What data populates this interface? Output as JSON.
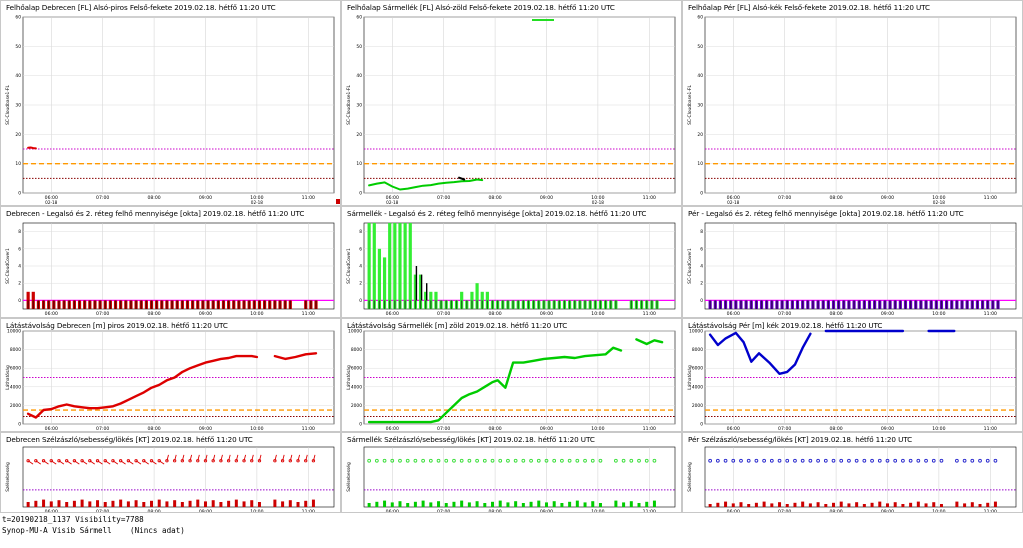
{
  "chart_data": [
    {
      "type": "line",
      "title": "Felhőalap Debrecen [FL] Alsó-piros Felső-fekete 2019.02.18. hétfő 11:20 UTC",
      "ylabel": "SC-Cloudbase1-FL",
      "ylim": [
        0,
        60
      ],
      "yticks": [
        "0",
        "10",
        "20",
        "30",
        "40",
        "50",
        "60"
      ],
      "xticks": [
        "06:00",
        "07:00",
        "08:00",
        "09:00",
        "10:00",
        "11:00"
      ],
      "sublabel": "02-18",
      "thresholds": [
        {
          "value": 15,
          "color": "#cc00cc"
        },
        {
          "value": 10,
          "color": "#ff9900"
        },
        {
          "value": 5,
          "color": "#880000"
        }
      ],
      "series": [
        {
          "color": "#dd0000",
          "points": [
            [
              5.55,
              15.4
            ],
            [
              5.6,
              15.5
            ],
            [
              5.65,
              15.3
            ],
            [
              5.7,
              15.2
            ]
          ]
        }
      ]
    },
    {
      "type": "line",
      "title": "Felhőalap Sármellék [FL] Alsó-zöld Felső-fekete 2019.02.18. hétfő 11:20 UTC",
      "ylabel": "SC-Cloudbase1-FL",
      "ylim": [
        0,
        60
      ],
      "yticks": [
        "0",
        "10",
        "20",
        "30",
        "40",
        "50",
        "60"
      ],
      "xticks": [
        "06:00",
        "07:00",
        "08:00",
        "09:00",
        "10:00",
        "11:00"
      ],
      "sublabel": "02-18",
      "thresholds": [
        {
          "value": 15,
          "color": "#cc00cc"
        },
        {
          "value": 10,
          "color": "#ff9900"
        },
        {
          "value": 5,
          "color": "#880000"
        }
      ],
      "series": [
        {
          "color": "#00cc00",
          "points": [
            [
              5.55,
              2.6
            ],
            [
              5.7,
              3.2
            ],
            [
              5.85,
              3.6
            ],
            [
              6.0,
              2.2
            ],
            [
              6.15,
              1.2
            ],
            [
              6.3,
              1.5
            ],
            [
              6.45,
              2
            ],
            [
              6.6,
              2.5
            ],
            [
              6.75,
              2.7
            ],
            [
              6.9,
              3.2
            ],
            [
              7.05,
              3.5
            ],
            [
              7.2,
              3.7
            ],
            [
              7.35,
              4
            ],
            [
              7.5,
              4.1
            ],
            [
              7.65,
              4.6
            ],
            [
              7.75,
              4.4
            ]
          ]
        },
        {
          "color": "#000000",
          "points": [
            [
              7.3,
              5.2
            ],
            [
              7.4,
              4.6
            ]
          ]
        }
      ],
      "legend_mark": true
    },
    {
      "type": "line",
      "title": "Felhőalap Pér [FL] Alsó-kék Felső-fekete 2019.02.18. hétfő 11:20 UTC",
      "ylabel": "SC-Cloudbase1-FL",
      "ylim": [
        0,
        60
      ],
      "yticks": [
        "0",
        "10",
        "20",
        "30",
        "40",
        "50",
        "60"
      ],
      "xticks": [
        "06:00",
        "07:00",
        "08:00",
        "09:00",
        "10:00",
        "11:00"
      ],
      "sublabel": "02-18",
      "thresholds": [
        {
          "value": 15,
          "color": "#cc00cc"
        },
        {
          "value": 10,
          "color": "#ff9900"
        },
        {
          "value": 5,
          "color": "#880000"
        }
      ],
      "series": []
    },
    {
      "type": "bar",
      "title": "Debrecen - Legalsó és 2. réteg felhő mennyisége [okta] 2019.02.18. hétfő 11:20 UTC",
      "ylabel": "SC-CloudCover1",
      "ylim": [
        -1,
        9
      ],
      "yticks": [
        "0",
        "2",
        "4",
        "6",
        "8"
      ],
      "xticks": [
        "06:00",
        "07:00",
        "08:00",
        "09:00",
        "10:00",
        "11:00"
      ],
      "baseline_color": "#ff00ff",
      "bars": {
        "color": "#cc0000",
        "start": 5.55,
        "step": 0.1,
        "values": [
          1,
          1,
          0,
          0,
          0,
          0,
          0,
          0,
          0,
          0,
          0,
          0,
          0,
          0,
          0,
          0,
          0,
          0,
          0,
          0,
          0,
          0,
          0,
          0,
          0,
          0,
          0,
          0,
          0,
          0,
          0,
          0,
          0,
          0,
          0,
          0,
          0,
          0,
          0,
          0,
          0,
          0,
          0,
          0,
          0,
          0,
          0,
          0,
          0,
          0,
          0,
          0,
          0,
          0,
          0,
          0,
          0
        ],
        "gaps": [
          52,
          53
        ]
      },
      "bars2": {
        "color": "#000000",
        "start": 5.55,
        "step": 0.1,
        "values": []
      }
    },
    {
      "type": "bar",
      "title": "Sármellék - Legalsó és 2. réteg felhő mennyisége [okta] 2019.02.18. hétfő 11:20 UTC",
      "ylabel": "SC-CloudCover1",
      "ylim": [
        -1,
        9
      ],
      "yticks": [
        "0",
        "2",
        "4",
        "6",
        "8"
      ],
      "xticks": [
        "06:00",
        "07:00",
        "08:00",
        "09:00",
        "10:00",
        "11:00"
      ],
      "baseline_color": "#ff00ff",
      "bars": {
        "color": "#33ee33",
        "start": 5.55,
        "step": 0.1,
        "values": [
          9,
          9,
          6,
          5,
          9,
          9,
          9,
          9,
          9,
          3,
          3,
          1,
          1,
          1,
          0,
          0,
          0,
          0,
          1,
          0,
          1,
          2,
          1,
          1,
          0,
          0,
          0,
          0,
          0,
          0,
          0,
          0,
          0,
          0,
          0,
          0,
          0,
          0,
          0,
          0,
          0,
          0,
          0,
          0,
          0,
          0,
          0,
          0,
          0,
          0,
          0,
          0,
          0,
          0,
          0,
          0,
          0
        ],
        "gaps": [
          49,
          50
        ]
      },
      "bars2": {
        "color": "#000000",
        "start": 5.55,
        "step": 0.1,
        "values": [
          0,
          0,
          0,
          0,
          0,
          0,
          0,
          0,
          0,
          4,
          3,
          2,
          0,
          0,
          0,
          0,
          0,
          0,
          0,
          0,
          0,
          0,
          0,
          0,
          0,
          0,
          0,
          0,
          0,
          0,
          0,
          0,
          0,
          0,
          0,
          0,
          0,
          0,
          0,
          0,
          0,
          0,
          0,
          0,
          0,
          0,
          0,
          0,
          0,
          0,
          0,
          0,
          0,
          0,
          0,
          0,
          0
        ]
      }
    },
    {
      "type": "bar",
      "title": "Pér - Legalsó és 2. réteg felhő mennyisége [okta] 2019.02.18. hétfő 11:20 UTC",
      "ylabel": "SC-CloudCover1",
      "ylim": [
        -1,
        9
      ],
      "yticks": [
        "0",
        "2",
        "4",
        "6",
        "8"
      ],
      "xticks": [
        "06:00",
        "07:00",
        "08:00",
        "09:00",
        "10:00",
        "11:00"
      ],
      "baseline_color": "#ff00ff",
      "bars": {
        "color": "#6a00cc",
        "start": 5.55,
        "step": 0.1,
        "values": [
          0,
          0,
          0,
          0,
          0,
          0,
          0,
          0,
          0,
          0,
          0,
          0,
          0,
          0,
          0,
          0,
          0,
          0,
          0,
          0,
          0,
          0,
          0,
          0,
          0,
          0,
          0,
          0,
          0,
          0,
          0,
          0,
          0,
          0,
          0,
          0,
          0,
          0,
          0,
          0,
          0,
          0,
          0,
          0,
          0,
          0,
          0,
          0,
          0,
          0,
          0,
          0,
          0,
          0,
          0,
          0,
          0
        ],
        "gaps": []
      },
      "bars2": {
        "color": "#000000",
        "start": 5.55,
        "step": 0.1,
        "values": []
      }
    },
    {
      "type": "line",
      "title": "Látástávolság Debrecen [m] piros 2019.02.18. hétfő 11:20 UTC",
      "ylabel": "Láthatóság",
      "ylim": [
        0,
        10000
      ],
      "yticks": [
        "0",
        "2000",
        "4000",
        "6000",
        "8000",
        "10000"
      ],
      "xticks": [
        "06:00",
        "07:00",
        "08:00",
        "09:00",
        "10:00",
        "11:00"
      ],
      "thresholds": [
        {
          "value": 5000,
          "color": "#cc00cc"
        },
        {
          "value": 1500,
          "color": "#ff9900"
        },
        {
          "value": 800,
          "color": "#880000"
        }
      ],
      "series": [
        {
          "color": "#dd0000",
          "points": [
            [
              5.55,
              1100
            ],
            [
              5.7,
              700
            ],
            [
              5.85,
              1500
            ],
            [
              6.0,
              1600
            ],
            [
              6.15,
              1900
            ],
            [
              6.3,
              2100
            ],
            [
              6.45,
              1900
            ],
            [
              6.6,
              1800
            ],
            [
              6.75,
              1700
            ],
            [
              6.9,
              1700
            ],
            [
              7.05,
              1800
            ],
            [
              7.2,
              1900
            ],
            [
              7.35,
              2200
            ],
            [
              7.5,
              2600
            ],
            [
              7.65,
              3000
            ],
            [
              7.8,
              3400
            ],
            [
              7.95,
              3900
            ],
            [
              8.1,
              4200
            ],
            [
              8.25,
              4700
            ],
            [
              8.4,
              5000
            ],
            [
              8.55,
              5600
            ],
            [
              8.7,
              6000
            ],
            [
              8.85,
              6300
            ],
            [
              9.0,
              6600
            ],
            [
              9.15,
              6800
            ],
            [
              9.3,
              7000
            ],
            [
              9.45,
              7100
            ],
            [
              9.6,
              7300
            ],
            [
              9.75,
              7300
            ],
            [
              9.9,
              7300
            ],
            [
              10.0,
              7200
            ]
          ]
        },
        {
          "color": "#dd0000",
          "points": [
            [
              10.35,
              7300
            ],
            [
              10.55,
              7000
            ],
            [
              10.75,
              7200
            ],
            [
              10.95,
              7500
            ],
            [
              11.15,
              7600
            ]
          ]
        }
      ]
    },
    {
      "type": "line",
      "title": "Látástávolság Sármellék [m] zöld 2019.02.18. hétfő 11:20 UTC",
      "ylabel": "Láthatóság",
      "ylim": [
        0,
        10000
      ],
      "yticks": [
        "0",
        "2000",
        "4000",
        "6000",
        "8000",
        "10000"
      ],
      "xticks": [
        "06:00",
        "07:00",
        "08:00",
        "09:00",
        "10:00",
        "11:00"
      ],
      "thresholds": [
        {
          "value": 5000,
          "color": "#cc00cc"
        },
        {
          "value": 1500,
          "color": "#ff9900"
        },
        {
          "value": 800,
          "color": "#880000"
        }
      ],
      "series": [
        {
          "color": "#00cc00",
          "points": [
            [
              5.55,
              200
            ],
            [
              5.85,
              200
            ],
            [
              6.15,
              200
            ],
            [
              6.45,
              200
            ],
            [
              6.75,
              200
            ],
            [
              6.9,
              400
            ],
            [
              7.05,
              1200
            ],
            [
              7.2,
              2000
            ],
            [
              7.35,
              2800
            ],
            [
              7.5,
              3200
            ],
            [
              7.65,
              3500
            ],
            [
              7.8,
              4000
            ],
            [
              7.95,
              4500
            ],
            [
              8.05,
              4700
            ],
            [
              8.2,
              3900
            ],
            [
              8.35,
              6600
            ],
            [
              8.55,
              6600
            ],
            [
              8.75,
              6800
            ],
            [
              8.95,
              7000
            ],
            [
              9.15,
              7100
            ],
            [
              9.35,
              7200
            ],
            [
              9.55,
              7100
            ],
            [
              9.75,
              7300
            ],
            [
              9.95,
              7400
            ],
            [
              10.15,
              7500
            ],
            [
              10.3,
              8200
            ],
            [
              10.45,
              7900
            ]
          ]
        },
        {
          "color": "#00cc00",
          "points": [
            [
              10.75,
              9100
            ],
            [
              10.95,
              8600
            ],
            [
              11.1,
              9000
            ],
            [
              11.25,
              8800
            ]
          ]
        }
      ]
    },
    {
      "type": "line",
      "title": "Látástávolság Pér [m] kék 2019.02.18. hétfő 11:20 UTC",
      "ylabel": "Láthatóság",
      "ylim": [
        0,
        10000
      ],
      "yticks": [
        "0",
        "2000",
        "4000",
        "6000",
        "8000",
        "10000"
      ],
      "xticks": [
        "06:00",
        "07:00",
        "08:00",
        "09:00",
        "10:00",
        "11:00"
      ],
      "thresholds": [
        {
          "value": 5000,
          "color": "#cc00cc"
        },
        {
          "value": 1500,
          "color": "#ff9900"
        },
        {
          "value": 800,
          "color": "#880000"
        }
      ],
      "series": [
        {
          "color": "#0000cc",
          "points": [
            [
              5.55,
              9600
            ],
            [
              5.7,
              8500
            ],
            [
              5.85,
              9200
            ],
            [
              6.05,
              9800
            ],
            [
              6.2,
              8800
            ],
            [
              6.35,
              6700
            ],
            [
              6.5,
              7600
            ],
            [
              6.7,
              6600
            ],
            [
              6.9,
              5400
            ],
            [
              7.05,
              5600
            ],
            [
              7.2,
              6400
            ],
            [
              7.35,
              8200
            ],
            [
              7.5,
              9700
            ]
          ]
        },
        {
          "color": "#0000cc",
          "points": [
            [
              7.8,
              10000
            ],
            [
              9.3,
              10000
            ]
          ]
        },
        {
          "color": "#0000cc",
          "points": [
            [
              9.8,
              10000
            ],
            [
              10.3,
              10000
            ]
          ]
        }
      ]
    },
    {
      "type": "scatter",
      "title": "Debrecen Szélzászló/sebesség/lökés [KT] 2019.02.18. hétfő 11:20 UTC",
      "ylabel": "Szélsebesség",
      "ylim": [
        0,
        35
      ],
      "xticks": [
        "06:00",
        "07:00",
        "08:00",
        "09:00",
        "10:00",
        "11:00"
      ],
      "threshold": {
        "value": 10,
        "color": "#9900cc"
      },
      "wind": {
        "color": "#dd0000",
        "y": 27,
        "start": 5.55,
        "step": 0.15,
        "count": 38,
        "style": "barb"
      },
      "bars": {
        "color": "#cc0000",
        "values_low": 3
      }
    },
    {
      "type": "scatter",
      "title": "Sármellék Szélzászló/sebesség/lökés [KT] 2019.02.18. hétfő 11:20 UTC",
      "ylabel": "Szélsebesség",
      "ylim": [
        0,
        35
      ],
      "xticks": [
        "06:00",
        "07:00",
        "08:00",
        "09:00",
        "10:00",
        "11:00"
      ],
      "threshold": {
        "value": 10,
        "color": "#9900cc"
      },
      "wind": {
        "color": "#33dd33",
        "y": 27,
        "start": 5.55,
        "step": 0.15,
        "count": 38,
        "style": "circle"
      },
      "bars": {
        "color": "#00cc00",
        "values_low": 2
      }
    },
    {
      "type": "scatter",
      "title": "Pér Szélzászló/sebesség/lökés [KT] 2019.02.18. hétfő 11:20 UTC",
      "ylabel": "Szélsebesség",
      "ylim": [
        0,
        35
      ],
      "xticks": [
        "06:00",
        "07:00",
        "08:00",
        "09:00",
        "10:00",
        "11:00"
      ],
      "threshold": {
        "value": 10,
        "color": "#9900cc"
      },
      "wind": {
        "color": "#2222cc",
        "y": 27,
        "start": 5.55,
        "step": 0.15,
        "count": 38,
        "style": "circle"
      },
      "bars": {
        "color": "#cc0000",
        "values_low": 1
      }
    }
  ],
  "status": {
    "line1": "t=20190218_1137 Visibility=7788",
    "line2": "Synop-MU-A Visib Sármell    (Nincs adat)"
  }
}
